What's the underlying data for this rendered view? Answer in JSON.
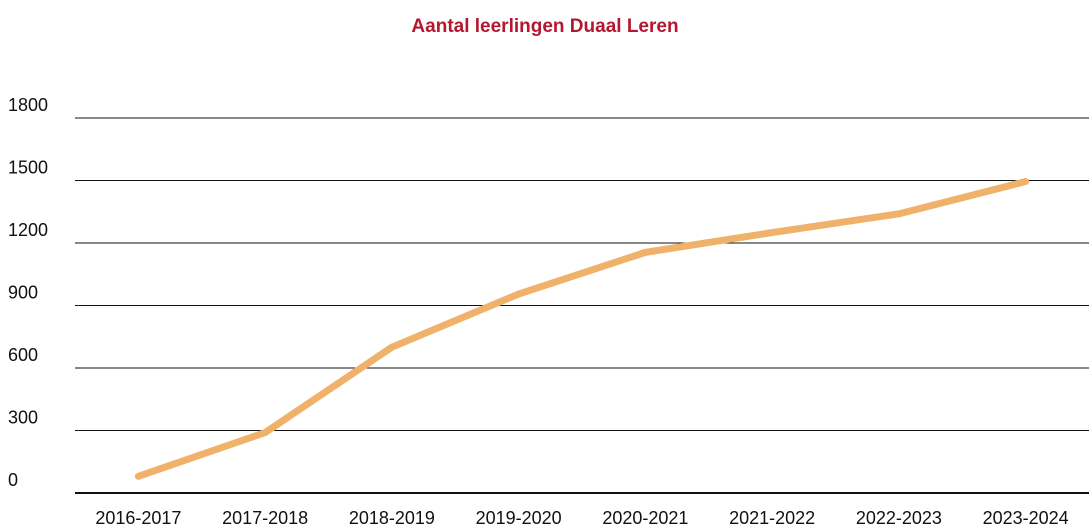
{
  "chart_data": {
    "type": "line",
    "title": "Aantal leerlingen Duaal Leren",
    "categories": [
      "2016-2017",
      "2017-2018",
      "2018-2019",
      "2019-2020",
      "2020-2021",
      "2021-2022",
      "2022-2023",
      "2023-2024"
    ],
    "series": [
      {
        "name": "Aantal leerlingen",
        "color": "#f0b26b",
        "values": [
          80,
          290,
          700,
          955,
          1155,
          1250,
          1340,
          1495
        ]
      }
    ],
    "ylim": [
      0,
      1800
    ],
    "yticks": [
      0,
      300,
      600,
      900,
      1200,
      1500,
      1800
    ],
    "grid": true
  }
}
